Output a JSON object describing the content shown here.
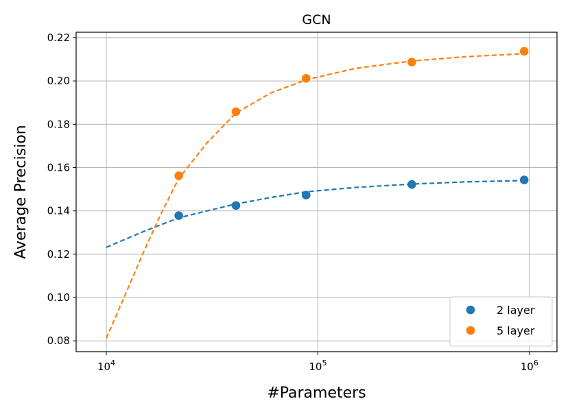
{
  "chart_data": {
    "type": "scatter",
    "title": "GCN",
    "xlabel": "#Parameters",
    "ylabel": "Average Precision",
    "xscale": "log",
    "xlim": [
      7200,
      1350000
    ],
    "ylim": [
      0.075,
      0.2225
    ],
    "xticks": [
      {
        "value": 10000,
        "base": "10",
        "exp": "4"
      },
      {
        "value": 100000,
        "base": "10",
        "exp": "5"
      },
      {
        "value": 1000000,
        "base": "10",
        "exp": "6"
      }
    ],
    "yticks": [
      {
        "value": 0.08,
        "label": "0.08"
      },
      {
        "value": 0.1,
        "label": "0.10"
      },
      {
        "value": 0.12,
        "label": "0.12"
      },
      {
        "value": 0.14,
        "label": "0.14"
      },
      {
        "value": 0.16,
        "label": "0.16"
      },
      {
        "value": 0.18,
        "label": "0.18"
      },
      {
        "value": 0.2,
        "label": "0.20"
      },
      {
        "value": 0.22,
        "label": "0.22"
      }
    ],
    "grid": true,
    "legend_position": "lower-right",
    "series": [
      {
        "name": "2 layer",
        "color": "#1f77b4",
        "points": [
          {
            "x": 22000,
            "y": 0.1378
          },
          {
            "x": 41000,
            "y": 0.1425
          },
          {
            "x": 88000,
            "y": 0.1473
          },
          {
            "x": 278000,
            "y": 0.1522
          },
          {
            "x": 945000,
            "y": 0.1543
          }
        ],
        "fit": [
          {
            "x": 10000,
            "y": 0.1232
          },
          {
            "x": 15000,
            "y": 0.1305
          },
          {
            "x": 22000,
            "y": 0.1368
          },
          {
            "x": 30000,
            "y": 0.14
          },
          {
            "x": 41000,
            "y": 0.1432
          },
          {
            "x": 60000,
            "y": 0.1462
          },
          {
            "x": 88000,
            "y": 0.1488
          },
          {
            "x": 150000,
            "y": 0.1508
          },
          {
            "x": 278000,
            "y": 0.1524
          },
          {
            "x": 500000,
            "y": 0.1534
          },
          {
            "x": 945000,
            "y": 0.154
          }
        ]
      },
      {
        "name": "5 layer",
        "color": "#ff7f0e",
        "points": [
          {
            "x": 22000,
            "y": 0.1562
          },
          {
            "x": 41000,
            "y": 0.1858
          },
          {
            "x": 88000,
            "y": 0.2012
          },
          {
            "x": 278000,
            "y": 0.2087
          },
          {
            "x": 945000,
            "y": 0.2137
          }
        ],
        "fit": [
          {
            "x": 10000,
            "y": 0.0812
          },
          {
            "x": 12000,
            "y": 0.099
          },
          {
            "x": 15000,
            "y": 0.121
          },
          {
            "x": 18000,
            "y": 0.138
          },
          {
            "x": 22000,
            "y": 0.155
          },
          {
            "x": 30000,
            "y": 0.1715
          },
          {
            "x": 41000,
            "y": 0.1852
          },
          {
            "x": 60000,
            "y": 0.1945
          },
          {
            "x": 88000,
            "y": 0.2005
          },
          {
            "x": 150000,
            "y": 0.2058
          },
          {
            "x": 278000,
            "y": 0.2092
          },
          {
            "x": 500000,
            "y": 0.2112
          },
          {
            "x": 945000,
            "y": 0.2126
          }
        ]
      }
    ]
  }
}
